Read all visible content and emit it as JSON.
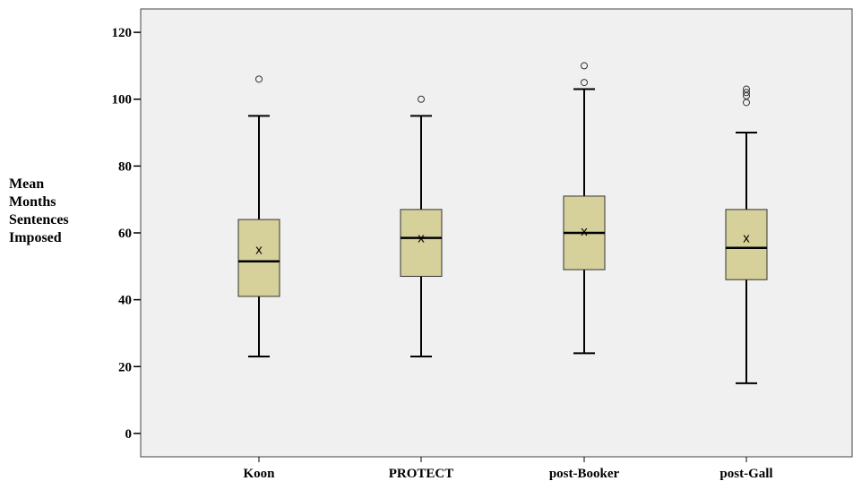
{
  "chart_data": {
    "type": "boxplot",
    "ylabel_lines": [
      "Mean",
      "Months",
      "Sentences",
      "Imposed"
    ],
    "xlabel": "",
    "ylim": [
      -7,
      127
    ],
    "yticks": [
      0,
      20,
      40,
      60,
      80,
      100,
      120
    ],
    "categories": [
      "Koon",
      "PROTECT",
      "post-Booker",
      "post-Gall"
    ],
    "mean_marker": "x",
    "box_color": "#d6d09a",
    "plot_bg": "#f0f0f0",
    "grid": false,
    "boxes": [
      {
        "category": "Koon",
        "whisker_low": 23,
        "q1": 41,
        "median": 51.5,
        "q3": 64,
        "whisker_high": 95,
        "mean": 55,
        "outliers": [
          106
        ]
      },
      {
        "category": "PROTECT",
        "whisker_low": 23,
        "q1": 47,
        "median": 58.5,
        "q3": 67,
        "whisker_high": 95,
        "mean": 58.5,
        "outliers": [
          100
        ]
      },
      {
        "category": "post-Booker",
        "whisker_low": 24,
        "q1": 49,
        "median": 60,
        "q3": 71,
        "whisker_high": 103,
        "mean": 60.5,
        "outliers": [
          105,
          110
        ]
      },
      {
        "category": "post-Gall",
        "whisker_low": 15,
        "q1": 46,
        "median": 55.5,
        "q3": 67,
        "whisker_high": 90,
        "mean": 58.5,
        "outliers": [
          99,
          101,
          102,
          103
        ]
      }
    ]
  }
}
